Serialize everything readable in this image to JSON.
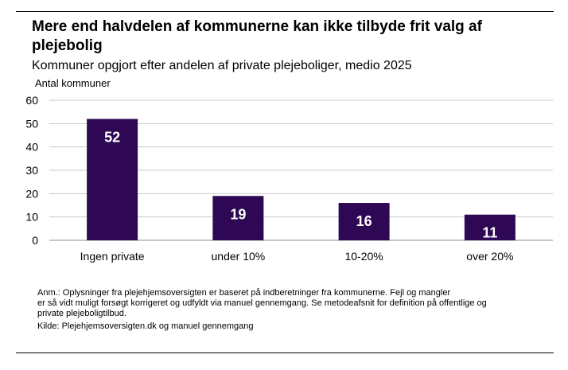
{
  "chart_data": {
    "type": "bar",
    "title": "Mere end halvdelen af kommunerne kan ikke tilbyde frit valg af plejebolig",
    "subtitle": "Kommuner opgjort efter andelen af private plejeboliger, medio 2025",
    "ylabel": "Antal kommuner",
    "categories": [
      "Ingen private",
      "under 10%",
      "10-20%",
      "over 20%"
    ],
    "values": [
      52,
      19,
      16,
      11
    ],
    "data_labels": [
      "52",
      "19",
      "16",
      "11"
    ],
    "ylim": [
      0,
      60
    ],
    "yticks": [
      "0",
      "10",
      "20",
      "30",
      "40",
      "50",
      "60"
    ],
    "grid": true,
    "bar_color": "#2e0854",
    "label_color": "#ffffff"
  },
  "notes": {
    "line1": "Anm.: Oplysninger fra plejehjemsoversigten er baseret på indberetninger fra kommunerne. Fejl og mangler",
    "line2": "er så vidt muligt forsøgt korrigeret og udfyldt via manuel gennemgang. Se metodeafsnit for definition på offentlige og",
    "line3": "private plejeboligtilbud.",
    "source": "Kilde: Plejehjemsoversigten.dk og manuel gennemgang"
  }
}
